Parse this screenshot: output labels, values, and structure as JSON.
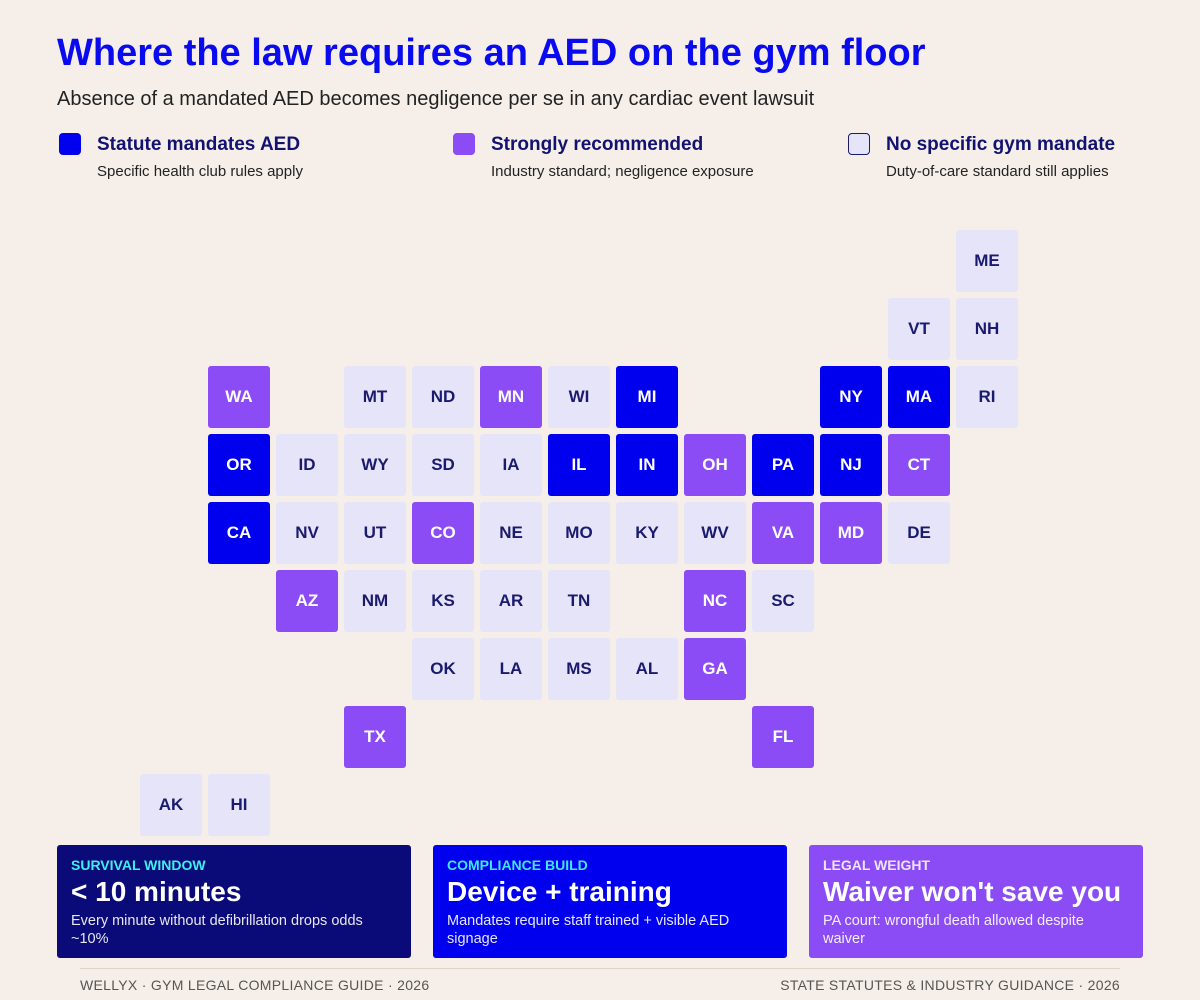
{
  "header": {
    "title": "Where the law requires an AED on the gym floor",
    "subtitle": "Absence of a mandated AED becomes negligence per se in any cardiac event lawsuit"
  },
  "legend": [
    {
      "label": "Statute mandates AED",
      "note": "Specific health club rules apply",
      "color": "#0000ee",
      "text_color": "#ffffff"
    },
    {
      "label": "Strongly recommended",
      "note": "Industry standard; negligence exposure",
      "color": "#8b4cf5",
      "text_color": "#ffffff"
    },
    {
      "label": "No specific gym mandate",
      "note": "Duty-of-care standard still applies",
      "color": "#e6e4f8",
      "text_color": "#1a1a6e"
    }
  ],
  "states": [
    {
      "code": "ME",
      "status": "No specific gym mandate"
    },
    {
      "code": "VT",
      "status": "No specific gym mandate"
    },
    {
      "code": "NH",
      "status": "No specific gym mandate"
    },
    {
      "code": "WA",
      "status": "Strongly recommended"
    },
    {
      "code": "MT",
      "status": "No specific gym mandate"
    },
    {
      "code": "ND",
      "status": "No specific gym mandate"
    },
    {
      "code": "MN",
      "status": "Strongly recommended"
    },
    {
      "code": "WI",
      "status": "No specific gym mandate"
    },
    {
      "code": "MI",
      "status": "Statute mandates AED"
    },
    {
      "code": "NY",
      "status": "Statute mandates AED"
    },
    {
      "code": "MA",
      "status": "Statute mandates AED"
    },
    {
      "code": "RI",
      "status": "No specific gym mandate"
    },
    {
      "code": "OR",
      "status": "Statute mandates AED"
    },
    {
      "code": "ID",
      "status": "No specific gym mandate"
    },
    {
      "code": "WY",
      "status": "No specific gym mandate"
    },
    {
      "code": "SD",
      "status": "No specific gym mandate"
    },
    {
      "code": "IA",
      "status": "No specific gym mandate"
    },
    {
      "code": "IL",
      "status": "Statute mandates AED"
    },
    {
      "code": "IN",
      "status": "Statute mandates AED"
    },
    {
      "code": "OH",
      "status": "Strongly recommended"
    },
    {
      "code": "PA",
      "status": "Statute mandates AED"
    },
    {
      "code": "NJ",
      "status": "Statute mandates AED"
    },
    {
      "code": "CT",
      "status": "Strongly recommended"
    },
    {
      "code": "CA",
      "status": "Statute mandates AED"
    },
    {
      "code": "NV",
      "status": "No specific gym mandate"
    },
    {
      "code": "UT",
      "status": "No specific gym mandate"
    },
    {
      "code": "CO",
      "status": "Strongly recommended"
    },
    {
      "code": "NE",
      "status": "No specific gym mandate"
    },
    {
      "code": "MO",
      "status": "No specific gym mandate"
    },
    {
      "code": "KY",
      "status": "No specific gym mandate"
    },
    {
      "code": "WV",
      "status": "No specific gym mandate"
    },
    {
      "code": "VA",
      "status": "Strongly recommended"
    },
    {
      "code": "MD",
      "status": "Strongly recommended"
    },
    {
      "code": "DE",
      "status": "No specific gym mandate"
    },
    {
      "code": "AZ",
      "status": "Strongly recommended"
    },
    {
      "code": "NM",
      "status": "No specific gym mandate"
    },
    {
      "code": "KS",
      "status": "No specific gym mandate"
    },
    {
      "code": "AR",
      "status": "No specific gym mandate"
    },
    {
      "code": "TN",
      "status": "No specific gym mandate"
    },
    {
      "code": "NC",
      "status": "Strongly recommended"
    },
    {
      "code": "SC",
      "status": "No specific gym mandate"
    },
    {
      "code": "OK",
      "status": "No specific gym mandate"
    },
    {
      "code": "LA",
      "status": "No specific gym mandate"
    },
    {
      "code": "MS",
      "status": "No specific gym mandate"
    },
    {
      "code": "AL",
      "status": "No specific gym mandate"
    },
    {
      "code": "GA",
      "status": "Strongly recommended"
    },
    {
      "code": "TX",
      "status": "Strongly recommended"
    },
    {
      "code": "FL",
      "status": "Strongly recommended"
    },
    {
      "code": "AK",
      "status": "No specific gym mandate"
    },
    {
      "code": "HI",
      "status": "No specific gym mandate"
    }
  ],
  "cards": [
    {
      "label": "SURVIVAL WINDOW",
      "headline": "< 10 minutes",
      "note": "Every minute without defibrillation drops odds ~10%"
    },
    {
      "label": "COMPLIANCE BUILD",
      "headline": "Device + training",
      "note": "Mandates require staff trained + visible AED signage"
    },
    {
      "label": "LEGAL WEIGHT",
      "headline": "Waiver won't save you",
      "note": "PA court: wrongful death allowed despite waiver"
    }
  ],
  "footer": {
    "left": "WELLYX · GYM LEGAL COMPLIANCE GUIDE · 2026",
    "right": "STATE STATUTES & INDUSTRY GUIDANCE · 2026"
  }
}
